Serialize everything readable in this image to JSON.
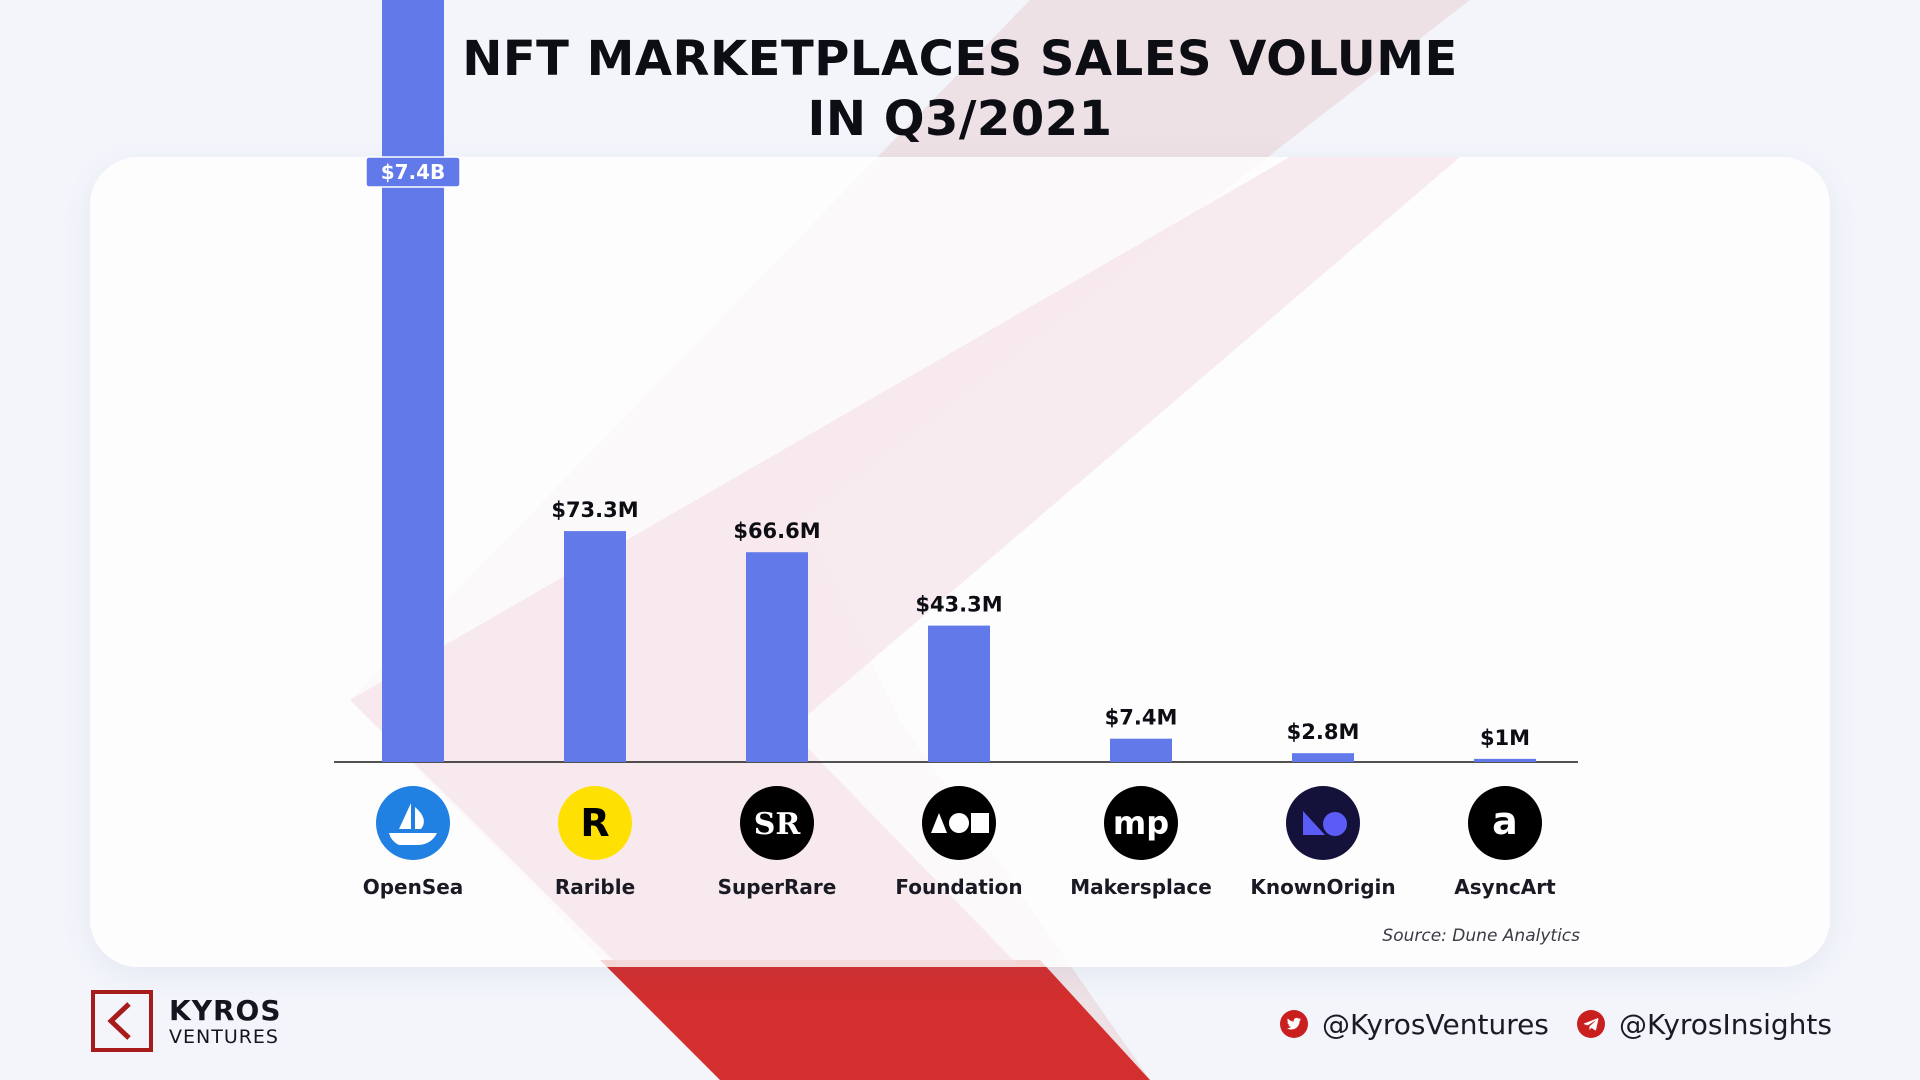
{
  "title": {
    "line1": "NFT MARKETPLACES SALES VOLUME",
    "line2": "IN Q3/2021"
  },
  "chart_data": {
    "type": "bar",
    "categories": [
      "OpenSea",
      "Rarible",
      "SuperRare",
      "Foundation",
      "Makersplace",
      "KnownOrigin",
      "AsyncArt"
    ],
    "values_usd_millions": [
      7400,
      73.3,
      66.6,
      43.3,
      7.4,
      2.8,
      1
    ],
    "value_labels": [
      "$7.4B",
      "$73.3M",
      "$66.6M",
      "$43.3M",
      "$7.4M",
      "$2.8M",
      "$1M"
    ],
    "axis_break": "OpenSea bar is truncated at the top (value far exceeds scale)",
    "y_axis": "none shown",
    "grid": false,
    "legend": "none",
    "bar_color": "#6279ea",
    "label_badge_color": "#6279ea"
  },
  "icons": [
    {
      "name": "opensea-logo-icon",
      "bg": "#2081e2",
      "fg": "#ffffff",
      "text": ""
    },
    {
      "name": "rarible-logo-icon",
      "bg": "#fee103",
      "fg": "#000000",
      "text": "R"
    },
    {
      "name": "superrare-logo-icon",
      "bg": "#000000",
      "fg": "#ffffff",
      "text": "SR"
    },
    {
      "name": "foundation-logo-icon",
      "bg": "#000000",
      "fg": "#ffffff",
      "text": ""
    },
    {
      "name": "makersplace-logo-icon",
      "bg": "#000000",
      "fg": "#ffffff",
      "text": "mp"
    },
    {
      "name": "knownorigin-logo-icon",
      "bg": "#14123a",
      "fg": "#5b5cf6",
      "text": ""
    },
    {
      "name": "asyncart-logo-icon",
      "bg": "#000000",
      "fg": "#ffffff",
      "text": "a"
    }
  ],
  "source": "Source: Dune Analytics",
  "brand": {
    "name": "KYROS",
    "sub": "VENTURES",
    "color": "#c91f1f"
  },
  "social": {
    "twitter": "@KyrosVentures",
    "telegram": "@KyrosInsights",
    "icon_color": "#c91f1f"
  }
}
